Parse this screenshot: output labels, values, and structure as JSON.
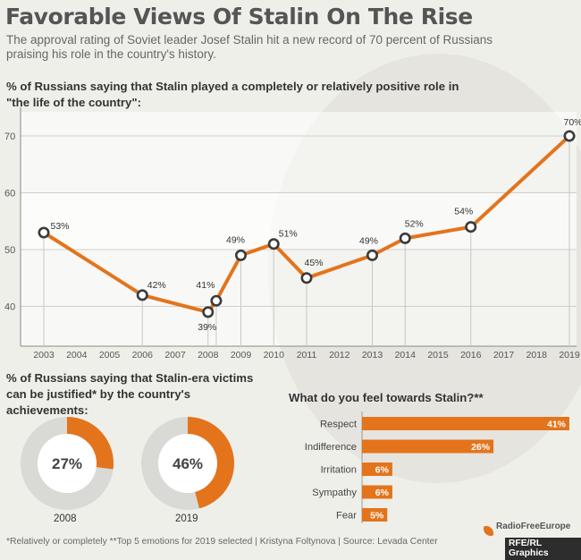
{
  "header": {
    "title": "Favorable Views Of Stalin On The Rise",
    "subtitle": "The approval rating of Soviet leader Josef Stalin hit a new record of 70 percent of Russians praising his role in the country's history."
  },
  "colors": {
    "accent": "#e3741c",
    "ring": "#d9d9d6",
    "text": "#333333"
  },
  "chart_data": [
    {
      "type": "line",
      "title": "% of Russians saying that Stalin played a completely or relatively positive role in \"the life of the country\":",
      "x_ticks": [
        "2003",
        "2004",
        "2005",
        "2006",
        "2007",
        "2008",
        "2009",
        "2010",
        "2011",
        "2012",
        "2013",
        "2014",
        "2015",
        "2016",
        "2017",
        "2018",
        "2019"
      ],
      "ylim": [
        33,
        70
      ],
      "y_ticks": [
        "40",
        "50",
        "60",
        "70"
      ],
      "grid": true,
      "points": [
        {
          "x": 2003,
          "y": 53,
          "label": "53%"
        },
        {
          "x": 2006,
          "y": 42,
          "label": "42%"
        },
        {
          "x": 2008,
          "y": 39,
          "label": "39%"
        },
        {
          "x": 2008.25,
          "y": 41,
          "label": "41%"
        },
        {
          "x": 2009,
          "y": 49,
          "label": "49%"
        },
        {
          "x": 2010,
          "y": 51,
          "label": "51%"
        },
        {
          "x": 2011,
          "y": 45,
          "label": "45%"
        },
        {
          "x": 2013,
          "y": 49,
          "label": "49%"
        },
        {
          "x": 2014,
          "y": 52,
          "label": "52%"
        },
        {
          "x": 2016,
          "y": 54,
          "label": "54%"
        },
        {
          "x": 2019,
          "y": 70,
          "label": "70%"
        }
      ]
    },
    {
      "type": "pie",
      "title": "% of Russians saying that Stalin-era victims can be justified* by the country's achievements:",
      "donuts": [
        {
          "year": "2008",
          "value": 27,
          "label": "27%"
        },
        {
          "year": "2019",
          "value": 46,
          "label": "46%"
        }
      ]
    },
    {
      "type": "bar",
      "title": "What do you feel towards Stalin?**",
      "xlim": [
        0,
        45
      ],
      "categories": [
        "Respect",
        "Indifference",
        "Irritation",
        "Sympathy",
        "Fear"
      ],
      "values": [
        41,
        26,
        6,
        6,
        5
      ],
      "labels": [
        "41%",
        "26%",
        "6%",
        "6%",
        "5%"
      ]
    }
  ],
  "footer": {
    "footnote": "*Relatively or completely **Top 5 emotions for 2019 selected | Kristyna Foltynova | Source: Levada Center",
    "logo": "RadioFreeEurope",
    "credit": "RFE/RL Graphics"
  }
}
